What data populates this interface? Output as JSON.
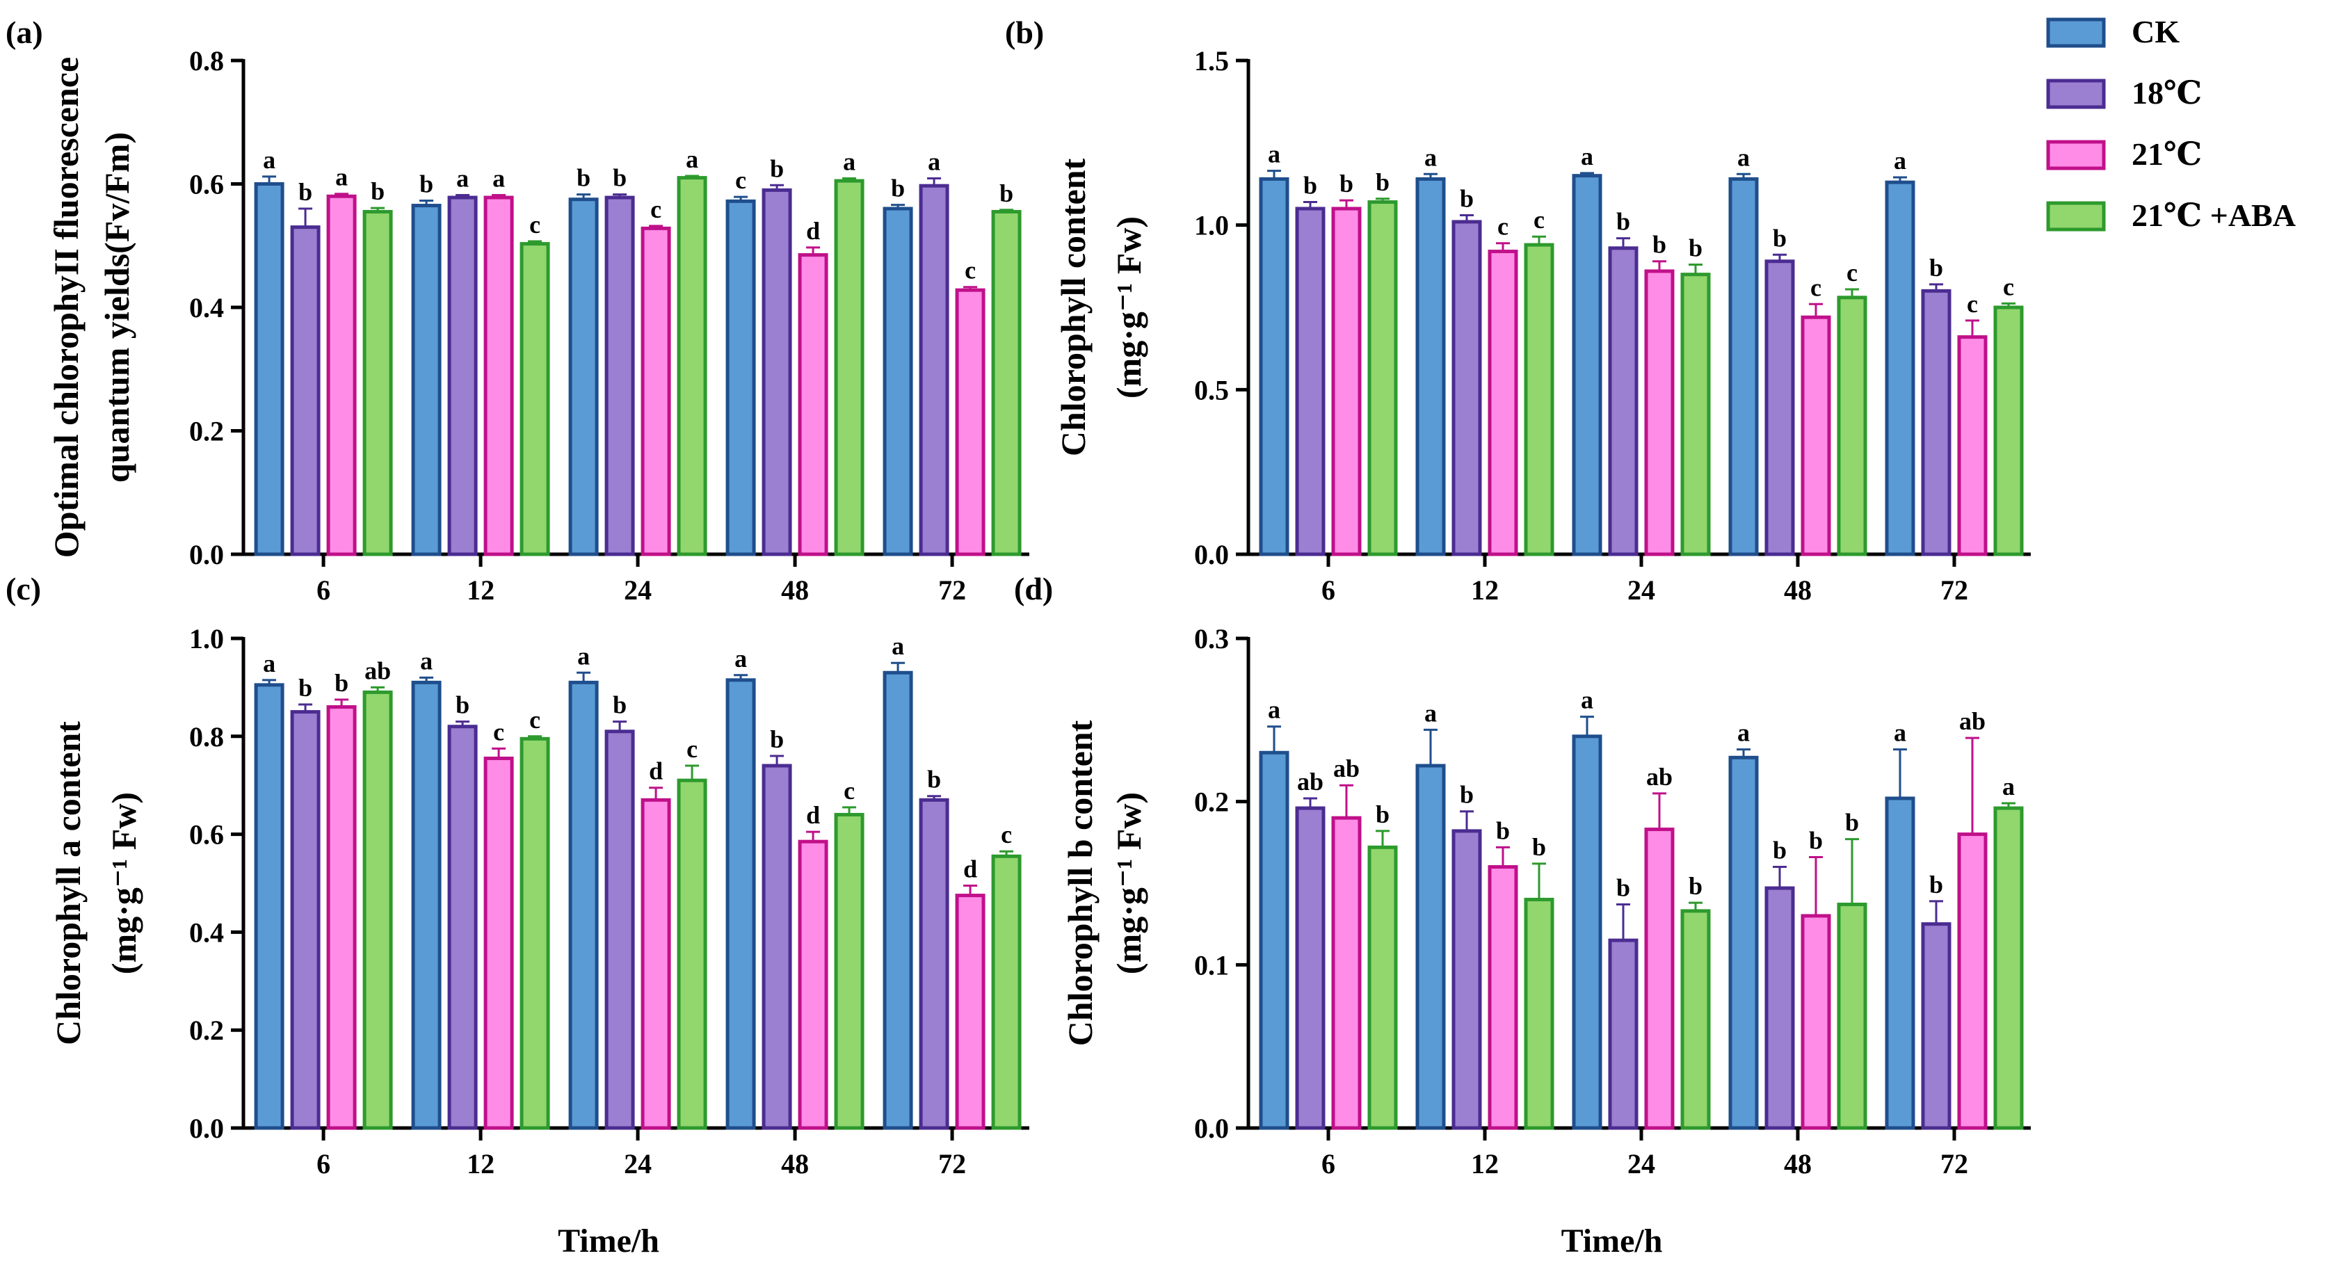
{
  "figure": {
    "legend": {
      "entries": [
        "CK",
        "18℃",
        "21℃",
        "21℃ +ABA"
      ]
    },
    "colors": {
      "fill": [
        "#5b9bd5",
        "#9b7fd0",
        "#ff8ce6",
        "#92d66e"
      ],
      "stroke": [
        "#1f4e8c",
        "#4b2c91",
        "#c0108a",
        "#2d9a2d"
      ]
    }
  },
  "chart_data": [
    {
      "type": "bar",
      "panel": "(a)",
      "title": "",
      "ylabel_lines": [
        "Optimal chlorophyII fluorescence",
        "quantum yields(Fv/Fm)"
      ],
      "xlabel": "",
      "categories": [
        "6",
        "12",
        "24",
        "48",
        "72"
      ],
      "ylim": [
        0,
        0.8
      ],
      "yticks": [
        0.0,
        0.2,
        0.4,
        0.6,
        0.8
      ],
      "ytick_labels": [
        "0.0",
        "0.2",
        "0.4",
        "0.6",
        "0.8"
      ],
      "series": [
        {
          "name": "CK",
          "values": [
            0.6,
            0.565,
            0.575,
            0.572,
            0.56
          ],
          "errors": [
            0.012,
            0.008,
            0.008,
            0.007,
            0.006
          ],
          "letters": [
            "a",
            "b",
            "b",
            "c",
            "b"
          ]
        },
        {
          "name": "18℃",
          "values": [
            0.53,
            0.578,
            0.578,
            0.59,
            0.597
          ],
          "errors": [
            0.03,
            0.004,
            0.005,
            0.008,
            0.012
          ],
          "letters": [
            "b",
            "a",
            "b",
            "b",
            "a"
          ]
        },
        {
          "name": "21℃",
          "values": [
            0.58,
            0.578,
            0.528,
            0.485,
            0.428
          ],
          "errors": [
            0.004,
            0.004,
            0.004,
            0.012,
            0.005
          ],
          "letters": [
            "a",
            "a",
            "c",
            "d",
            "c"
          ]
        },
        {
          "name": "21℃ +ABA",
          "values": [
            0.555,
            0.503,
            0.61,
            0.605,
            0.555
          ],
          "errors": [
            0.006,
            0.004,
            0.003,
            0.004,
            0.003
          ],
          "letters": [
            "b",
            "c",
            "a",
            "a",
            "b"
          ]
        }
      ]
    },
    {
      "type": "bar",
      "panel": "(b)",
      "title": "",
      "ylabel_lines": [
        "Chlorophyll content",
        "(mg·g⁻¹ Fw)"
      ],
      "xlabel": "",
      "categories": [
        "6",
        "12",
        "24",
        "48",
        "72"
      ],
      "ylim": [
        0,
        1.5
      ],
      "yticks": [
        0.0,
        0.5,
        1.0,
        1.5
      ],
      "ytick_labels": [
        "0.0",
        "0.5",
        "1.0",
        "1.5"
      ],
      "series": [
        {
          "name": "CK",
          "values": [
            1.14,
            1.14,
            1.15,
            1.14,
            1.13
          ],
          "errors": [
            0.025,
            0.015,
            0.008,
            0.015,
            0.015
          ],
          "letters": [
            "a",
            "a",
            "a",
            "a",
            "a"
          ]
        },
        {
          "name": "18℃",
          "values": [
            1.05,
            1.01,
            0.93,
            0.89,
            0.8
          ],
          "errors": [
            0.02,
            0.02,
            0.03,
            0.02,
            0.02
          ],
          "letters": [
            "b",
            "b",
            "b",
            "b",
            "b"
          ]
        },
        {
          "name": "21℃",
          "values": [
            1.05,
            0.92,
            0.86,
            0.72,
            0.66
          ],
          "errors": [
            0.025,
            0.025,
            0.03,
            0.04,
            0.05
          ],
          "letters": [
            "b",
            "c",
            "b",
            "c",
            "c"
          ]
        },
        {
          "name": "21℃ +ABA",
          "values": [
            1.07,
            0.94,
            0.85,
            0.78,
            0.75
          ],
          "errors": [
            0.01,
            0.025,
            0.03,
            0.025,
            0.012
          ],
          "letters": [
            "b",
            "c",
            "b",
            "c",
            "c"
          ]
        }
      ]
    },
    {
      "type": "bar",
      "panel": "(c)",
      "title": "",
      "ylabel_lines": [
        "Chlorophyll a content",
        "(mg·g⁻¹ Fw)"
      ],
      "xlabel": "Time/h",
      "categories": [
        "6",
        "12",
        "24",
        "48",
        "72"
      ],
      "ylim": [
        0,
        1.0
      ],
      "yticks": [
        0.0,
        0.2,
        0.4,
        0.6,
        0.8,
        1.0
      ],
      "ytick_labels": [
        "0.0",
        "0.2",
        "0.4",
        "0.6",
        "0.8",
        "1.0"
      ],
      "series": [
        {
          "name": "CK",
          "values": [
            0.905,
            0.91,
            0.91,
            0.915,
            0.93
          ],
          "errors": [
            0.01,
            0.01,
            0.02,
            0.01,
            0.02
          ],
          "letters": [
            "a",
            "a",
            "a",
            "a",
            "a"
          ]
        },
        {
          "name": "18℃",
          "values": [
            0.85,
            0.82,
            0.81,
            0.74,
            0.67
          ],
          "errors": [
            0.015,
            0.01,
            0.02,
            0.02,
            0.008
          ],
          "letters": [
            "b",
            "b",
            "b",
            "b",
            "b"
          ]
        },
        {
          "name": "21℃",
          "values": [
            0.86,
            0.755,
            0.67,
            0.585,
            0.475
          ],
          "errors": [
            0.015,
            0.02,
            0.025,
            0.02,
            0.02
          ],
          "letters": [
            "b",
            "c",
            "d",
            "d",
            "d"
          ]
        },
        {
          "name": "21℃ +ABA",
          "values": [
            0.89,
            0.795,
            0.71,
            0.64,
            0.555
          ],
          "errors": [
            0.01,
            0.005,
            0.03,
            0.015,
            0.01
          ],
          "letters": [
            "ab",
            "c",
            "c",
            "c",
            "c"
          ]
        }
      ]
    },
    {
      "type": "bar",
      "panel": "(d)",
      "title": "",
      "ylabel_lines": [
        "Chlorophyll b content",
        "(mg·g⁻¹ Fw)"
      ],
      "xlabel": "Time/h",
      "categories": [
        "6",
        "12",
        "24",
        "48",
        "72"
      ],
      "ylim": [
        0,
        0.3
      ],
      "yticks": [
        0.0,
        0.1,
        0.2,
        0.3
      ],
      "ytick_labels": [
        "0.0",
        "0.1",
        "0.2",
        "0.3"
      ],
      "series": [
        {
          "name": "CK",
          "values": [
            0.23,
            0.222,
            0.24,
            0.227,
            0.202
          ],
          "errors": [
            0.016,
            0.022,
            0.012,
            0.005,
            0.03
          ],
          "letters": [
            "a",
            "a",
            "a",
            "a",
            "a"
          ]
        },
        {
          "name": "18℃",
          "values": [
            0.196,
            0.182,
            0.115,
            0.147,
            0.125
          ],
          "errors": [
            0.006,
            0.012,
            0.022,
            0.013,
            0.014
          ],
          "letters": [
            "ab",
            "b",
            "b",
            "b",
            "b"
          ]
        },
        {
          "name": "21℃",
          "values": [
            0.19,
            0.16,
            0.183,
            0.13,
            0.18
          ],
          "errors": [
            0.02,
            0.012,
            0.022,
            0.036,
            0.059
          ],
          "letters": [
            "ab",
            "b",
            "ab",
            "b",
            "ab"
          ]
        },
        {
          "name": "21℃ +ABA",
          "values": [
            0.172,
            0.14,
            0.133,
            0.137,
            0.196
          ],
          "errors": [
            0.01,
            0.022,
            0.005,
            0.04,
            0.003
          ],
          "letters": [
            "b",
            "b",
            "b",
            "b",
            "a"
          ]
        }
      ]
    }
  ]
}
